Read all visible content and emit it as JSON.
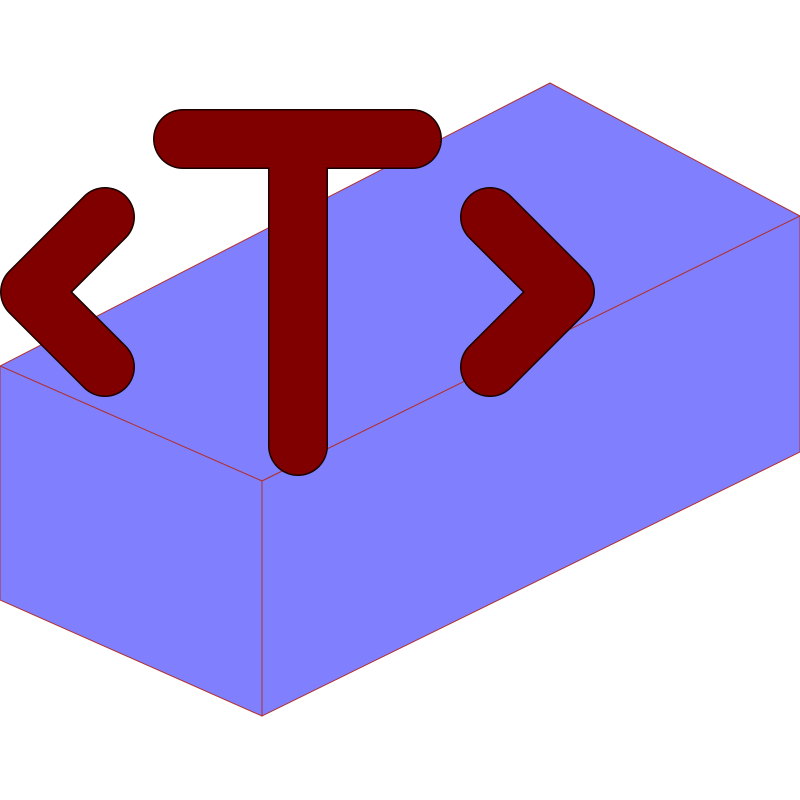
{
  "icon": {
    "name": "template-block-icon",
    "glyph": "<T>",
    "colors": {
      "block_fill": "#8080ff",
      "block_edge": "#b03030",
      "glyph_fill": "#800000",
      "glyph_outline": "#1a0000",
      "background": "#ffffff"
    }
  }
}
